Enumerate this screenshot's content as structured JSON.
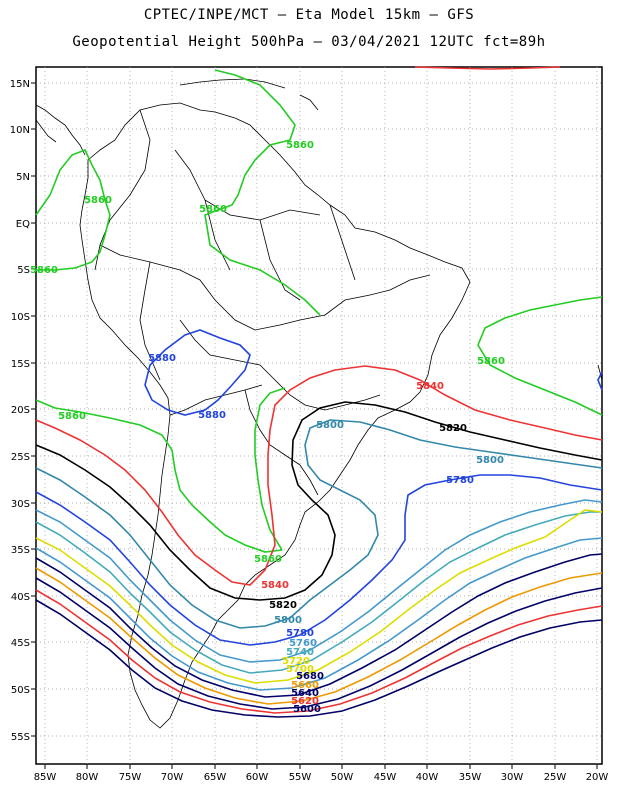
{
  "title_line1": "CPTEC/INPE/MCT –  Eta Model 15km – GFS",
  "title_line2": "Geopotential Height 500hPa – 03/04/2021 12UTC fct=89h",
  "lat_labels": [
    "15N",
    "10N",
    "5N",
    "EQ",
    "5S",
    "10S",
    "15S",
    "20S",
    "25S",
    "30S",
    "35S",
    "40S",
    "45S",
    "50S",
    "55S"
  ],
  "lon_labels": [
    "85W",
    "80W",
    "75W",
    "70W",
    "65W",
    "60W",
    "55W",
    "50W",
    "45W",
    "40W",
    "35W",
    "30W",
    "25W",
    "20W"
  ],
  "contour_labels": [
    {
      "text": "5860",
      "color": "#22cc22"
    },
    {
      "text": "5860",
      "color": "#22cc22"
    },
    {
      "text": "5860",
      "color": "#22cc22"
    },
    {
      "text": "5860",
      "color": "#22cc22"
    },
    {
      "text": "5860",
      "color": "#22cc22"
    },
    {
      "text": "5860",
      "color": "#22cc22"
    },
    {
      "text": "5860",
      "color": "#22cc22"
    },
    {
      "text": "5880",
      "color": "#2244dd"
    },
    {
      "text": "5880",
      "color": "#2244dd"
    },
    {
      "text": "5840",
      "color": "#ee3333"
    },
    {
      "text": "5840",
      "color": "#ee3333"
    },
    {
      "text": "5820",
      "color": "#000000"
    },
    {
      "text": "5820",
      "color": "#000000"
    },
    {
      "text": "5800",
      "color": "#3388aa"
    },
    {
      "text": "5800",
      "color": "#3388aa"
    },
    {
      "text": "5800",
      "color": "#3388aa"
    },
    {
      "text": "5780",
      "color": "#2244dd"
    },
    {
      "text": "5780",
      "color": "#2244dd"
    },
    {
      "text": "5760",
      "color": "#4499cc"
    },
    {
      "text": "5740",
      "color": "#44aabb"
    },
    {
      "text": "5720",
      "color": "#dddd00"
    },
    {
      "text": "5700",
      "color": "#dddd00"
    },
    {
      "text": "5680",
      "color": "#000066"
    },
    {
      "text": "5660",
      "color": "#ee9900"
    },
    {
      "text": "5640",
      "color": "#000066"
    },
    {
      "text": "5620",
      "color": "#ee3333"
    },
    {
      "text": "5600",
      "color": "#000066"
    }
  ]
}
